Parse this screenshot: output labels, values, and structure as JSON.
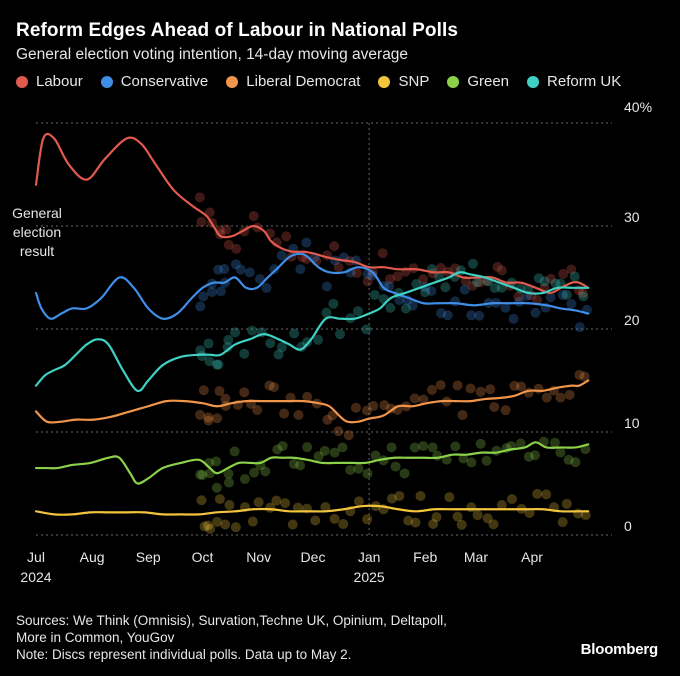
{
  "header": {
    "title": "Reform Edges Ahead of Labour in National Polls",
    "subtitle": "General election voting intention, 14-day moving average"
  },
  "footer": {
    "sources_line1": "Sources: We Think (Omnisis), Survation,Techne UK, Opinium, Deltapoll,",
    "sources_line2": "More in Common, YouGov",
    "note": "Note: Discs represent individual polls. Data up to May 2.",
    "brand": "Bloomberg"
  },
  "chart_data": {
    "type": "line",
    "title": "Reform Edges Ahead of Labour in National Polls",
    "subtitle": "General election voting intention, 14-day moving average",
    "ylim": [
      0,
      40
    ],
    "yticks": [
      0,
      10,
      20,
      30,
      40
    ],
    "ytick_labels": [
      "0",
      "10",
      "20",
      "30",
      "40%"
    ],
    "x_ticks": [
      {
        "label": "Jul",
        "day": 0,
        "year": "2024"
      },
      {
        "label": "Aug",
        "day": 31
      },
      {
        "label": "Sep",
        "day": 62
      },
      {
        "label": "Oct",
        "day": 92
      },
      {
        "label": "Nov",
        "day": 123
      },
      {
        "label": "Dec",
        "day": 153
      },
      {
        "label": "Jan",
        "day": 184,
        "year": "2025"
      },
      {
        "label": "Feb",
        "day": 215
      },
      {
        "label": "Mar",
        "day": 243
      },
      {
        "label": "Apr",
        "day": 274
      }
    ],
    "annotation": {
      "text_lines": [
        "General",
        "election",
        "result"
      ]
    },
    "grid": true,
    "legend_placement": "top",
    "series": [
      {
        "name": "Labour",
        "color": "#e05a4e",
        "points": [
          [
            0,
            34
          ],
          [
            4,
            38.5
          ],
          [
            10,
            38.5
          ],
          [
            18,
            36
          ],
          [
            28,
            34.5
          ],
          [
            38,
            36.5
          ],
          [
            50,
            38.5
          ],
          [
            58,
            38
          ],
          [
            66,
            36
          ],
          [
            76,
            33.5
          ],
          [
            86,
            32
          ],
          [
            94,
            31
          ],
          [
            98,
            30
          ],
          [
            102,
            29
          ],
          [
            108,
            29
          ],
          [
            114,
            29.5
          ],
          [
            120,
            30
          ],
          [
            126,
            29.5
          ],
          [
            130,
            28.5
          ],
          [
            136,
            27.8
          ],
          [
            142,
            27.5
          ],
          [
            148,
            27.5
          ],
          [
            154,
            27.3
          ],
          [
            160,
            27
          ],
          [
            168,
            26.7
          ],
          [
            176,
            26.5
          ],
          [
            184,
            26
          ],
          [
            192,
            26
          ],
          [
            200,
            25.8
          ],
          [
            210,
            25.8
          ],
          [
            220,
            25.5
          ],
          [
            228,
            25.5
          ],
          [
            236,
            25
          ],
          [
            244,
            25
          ],
          [
            252,
            25
          ],
          [
            260,
            24.5
          ],
          [
            268,
            24.5
          ],
          [
            276,
            24
          ],
          [
            284,
            23.5
          ],
          [
            290,
            24
          ],
          [
            296,
            24.5
          ],
          [
            300,
            24.5
          ],
          [
            305,
            24
          ]
        ]
      },
      {
        "name": "Conservative",
        "color": "#3f8ee8",
        "points": [
          [
            0,
            23.5
          ],
          [
            3,
            22
          ],
          [
            8,
            21
          ],
          [
            14,
            21.5
          ],
          [
            20,
            22
          ],
          [
            28,
            22
          ],
          [
            36,
            23
          ],
          [
            46,
            25
          ],
          [
            54,
            24
          ],
          [
            62,
            22
          ],
          [
            70,
            21
          ],
          [
            78,
            21.5
          ],
          [
            86,
            23
          ],
          [
            92,
            24
          ],
          [
            98,
            24.5
          ],
          [
            104,
            24.5
          ],
          [
            110,
            25
          ],
          [
            116,
            24
          ],
          [
            122,
            24
          ],
          [
            128,
            25
          ],
          [
            134,
            26
          ],
          [
            140,
            27
          ],
          [
            146,
            27.3
          ],
          [
            150,
            27
          ],
          [
            156,
            26
          ],
          [
            162,
            25.5
          ],
          [
            170,
            25.5
          ],
          [
            178,
            26
          ],
          [
            186,
            25.5
          ],
          [
            192,
            24
          ],
          [
            198,
            23.5
          ],
          [
            206,
            23
          ],
          [
            214,
            22.5
          ],
          [
            222,
            22.5
          ],
          [
            232,
            22.5
          ],
          [
            242,
            22.3
          ],
          [
            252,
            22.5
          ],
          [
            262,
            22.5
          ],
          [
            272,
            22.5
          ],
          [
            282,
            22.3
          ],
          [
            290,
            22
          ],
          [
            298,
            21.8
          ],
          [
            305,
            21.5
          ]
        ]
      },
      {
        "name": "Liberal Democrat",
        "color": "#f0954a",
        "points": [
          [
            0,
            12
          ],
          [
            6,
            11
          ],
          [
            14,
            11
          ],
          [
            22,
            11.2
          ],
          [
            32,
            11.2
          ],
          [
            42,
            11.5
          ],
          [
            52,
            12
          ],
          [
            62,
            12.5
          ],
          [
            72,
            13
          ],
          [
            82,
            13
          ],
          [
            92,
            12.8
          ],
          [
            100,
            12.5
          ],
          [
            108,
            12.8
          ],
          [
            116,
            13
          ],
          [
            124,
            13
          ],
          [
            132,
            13
          ],
          [
            140,
            13
          ],
          [
            148,
            13
          ],
          [
            156,
            12.8
          ],
          [
            162,
            12.5
          ],
          [
            168,
            11.5
          ],
          [
            172,
            11
          ],
          [
            178,
            11
          ],
          [
            184,
            11.3
          ],
          [
            192,
            11.6
          ],
          [
            200,
            12.5
          ],
          [
            208,
            12.5
          ],
          [
            216,
            12.8
          ],
          [
            224,
            13
          ],
          [
            232,
            13
          ],
          [
            240,
            13
          ],
          [
            248,
            13.2
          ],
          [
            256,
            13.3
          ],
          [
            264,
            13.5
          ],
          [
            272,
            14
          ],
          [
            280,
            14
          ],
          [
            288,
            14.3
          ],
          [
            296,
            14.5
          ],
          [
            300,
            14.5
          ],
          [
            305,
            15
          ]
        ]
      },
      {
        "name": "SNP",
        "color": "#f2c53d",
        "points": [
          [
            0,
            2.3
          ],
          [
            10,
            2
          ],
          [
            20,
            2
          ],
          [
            30,
            2.2
          ],
          [
            40,
            2.2
          ],
          [
            50,
            2.2
          ],
          [
            60,
            2.2
          ],
          [
            70,
            2
          ],
          [
            80,
            2
          ],
          [
            90,
            2
          ],
          [
            100,
            2.2
          ],
          [
            110,
            2.3
          ],
          [
            120,
            2.5
          ],
          [
            130,
            2.5
          ],
          [
            140,
            2.3
          ],
          [
            150,
            2.3
          ],
          [
            160,
            2.3
          ],
          [
            170,
            2.5
          ],
          [
            180,
            2.8
          ],
          [
            190,
            2.8
          ],
          [
            200,
            2.5
          ],
          [
            210,
            2.3
          ],
          [
            220,
            2.5
          ],
          [
            230,
            2.5
          ],
          [
            240,
            2.5
          ],
          [
            250,
            2.5
          ],
          [
            260,
            2.5
          ],
          [
            270,
            2.5
          ],
          [
            280,
            2.5
          ],
          [
            290,
            2.3
          ],
          [
            300,
            2.3
          ],
          [
            305,
            2.3
          ]
        ]
      },
      {
        "name": "Green",
        "color": "#8cd14a",
        "points": [
          [
            0,
            6.5
          ],
          [
            6,
            6.5
          ],
          [
            12,
            6.5
          ],
          [
            20,
            6.8
          ],
          [
            30,
            7
          ],
          [
            40,
            7.5
          ],
          [
            46,
            7.5
          ],
          [
            52,
            6
          ],
          [
            56,
            5
          ],
          [
            62,
            5.5
          ],
          [
            70,
            6.5
          ],
          [
            80,
            7
          ],
          [
            90,
            7.3
          ],
          [
            96,
            6.5
          ],
          [
            100,
            6
          ],
          [
            106,
            6.5
          ],
          [
            112,
            7
          ],
          [
            118,
            7
          ],
          [
            124,
            7
          ],
          [
            130,
            7.5
          ],
          [
            136,
            7.5
          ],
          [
            142,
            7.5
          ],
          [
            150,
            7.3
          ],
          [
            158,
            7
          ],
          [
            166,
            7
          ],
          [
            174,
            7
          ],
          [
            182,
            7
          ],
          [
            190,
            7.3
          ],
          [
            198,
            7.5
          ],
          [
            206,
            7.5
          ],
          [
            214,
            7.5
          ],
          [
            222,
            7.5
          ],
          [
            230,
            7.8
          ],
          [
            238,
            7.8
          ],
          [
            246,
            8
          ],
          [
            254,
            8
          ],
          [
            262,
            8.3
          ],
          [
            270,
            8.5
          ],
          [
            276,
            9
          ],
          [
            282,
            8.5
          ],
          [
            290,
            8.5
          ],
          [
            298,
            8.5
          ],
          [
            305,
            8.8
          ]
        ]
      },
      {
        "name": "Reform UK",
        "color": "#3fd1c4",
        "points": [
          [
            0,
            14.5
          ],
          [
            5,
            15.5
          ],
          [
            10,
            16
          ],
          [
            16,
            16.5
          ],
          [
            22,
            17.5
          ],
          [
            28,
            18.5
          ],
          [
            34,
            19
          ],
          [
            40,
            18.5
          ],
          [
            48,
            16
          ],
          [
            56,
            14
          ],
          [
            62,
            15
          ],
          [
            70,
            16.5
          ],
          [
            80,
            17.3
          ],
          [
            90,
            17.5
          ],
          [
            96,
            17.5
          ],
          [
            102,
            17.5
          ],
          [
            110,
            18.5
          ],
          [
            118,
            19
          ],
          [
            126,
            19.5
          ],
          [
            134,
            19
          ],
          [
            140,
            18.5
          ],
          [
            146,
            18
          ],
          [
            152,
            19
          ],
          [
            160,
            21
          ],
          [
            168,
            21
          ],
          [
            176,
            21
          ],
          [
            184,
            21.5
          ],
          [
            190,
            22
          ],
          [
            196,
            23
          ],
          [
            204,
            23.5
          ],
          [
            212,
            24
          ],
          [
            220,
            24.5
          ],
          [
            228,
            25
          ],
          [
            234,
            25.5
          ],
          [
            240,
            25.3
          ],
          [
            248,
            25
          ],
          [
            256,
            24.5
          ],
          [
            264,
            24
          ],
          [
            272,
            23.5
          ],
          [
            280,
            23.5
          ],
          [
            288,
            24
          ],
          [
            296,
            24
          ],
          [
            300,
            24
          ],
          [
            305,
            24
          ]
        ]
      }
    ]
  }
}
